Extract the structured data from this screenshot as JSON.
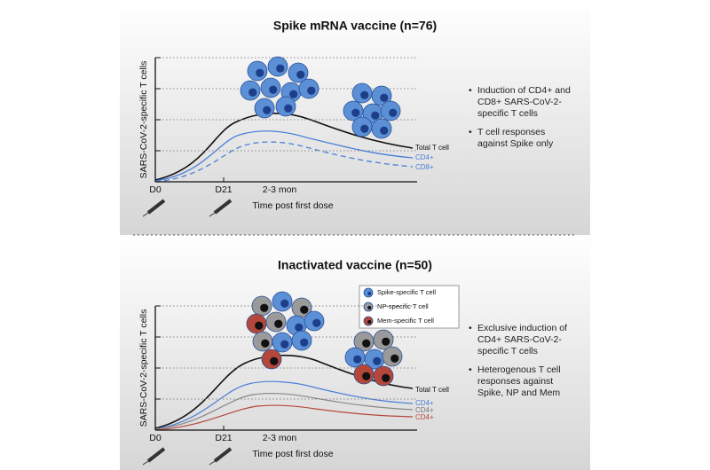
{
  "panels": [
    {
      "title": "Spike mRNA vaccine (n=76)",
      "y_axis_label": "SARS-CoV-2-specific T cells",
      "x_labels": [
        "D0",
        "D21",
        "2-3 mon"
      ],
      "x_axis_label": "Time post first dose",
      "curve_labels": [
        "Total T cell",
        "CD4+",
        "CD8+"
      ],
      "bullets": [
        "Induction of CD4+ and CD8+ SARS-CoV-2-specific T cells",
        "T cell responses against Spike only"
      ]
    },
    {
      "title": "Inactivated vaccine (n=50)",
      "y_axis_label": "SARS-CoV-2-specific T cells",
      "x_labels": [
        "D0",
        "D21",
        "2-3 mon"
      ],
      "x_axis_label": "Time post first dose",
      "curve_labels": [
        "Total T cell",
        "CD4+",
        "CD4+",
        "CD4+"
      ],
      "legend": [
        "Spike-specific T cell",
        "NP-specific T cell",
        "Mem-specific T cell"
      ],
      "bullets": [
        "Exclusive induction of CD4+ SARS-CoV-2-specific T cells",
        "Heterogenous T cell responses against Spike, NP and Mem"
      ]
    }
  ]
}
